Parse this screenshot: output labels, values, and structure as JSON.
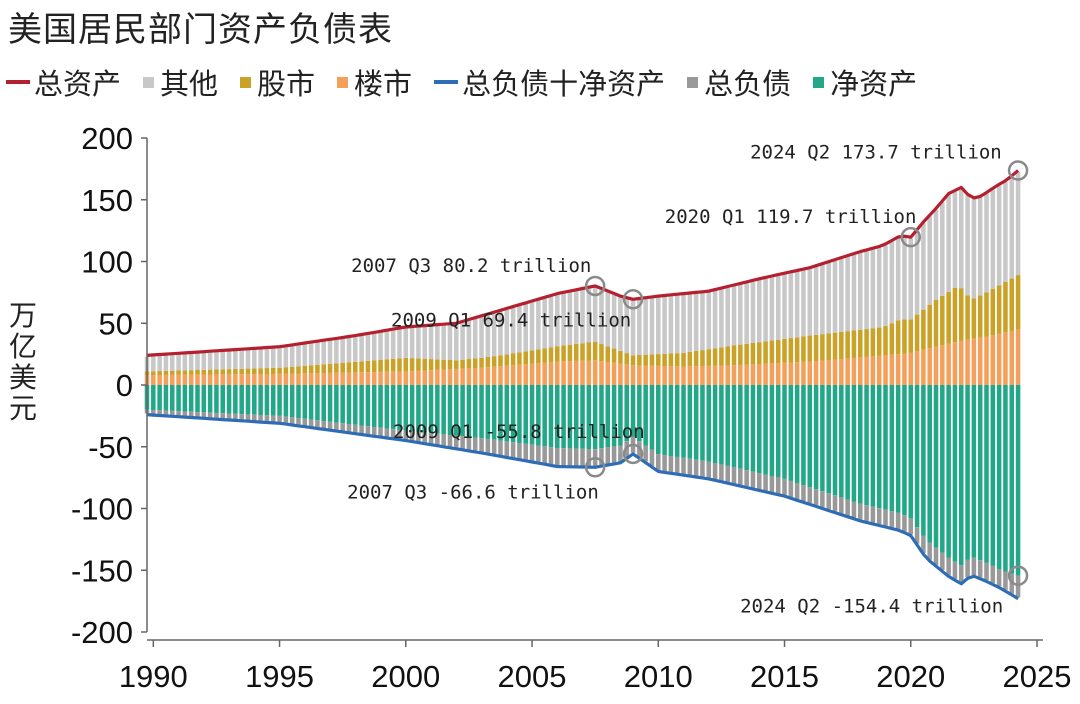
{
  "title": "美国居民部门资产负债表",
  "legend": [
    {
      "label": "总资产",
      "kind": "line",
      "color": "#b4202f"
    },
    {
      "label": "其他",
      "kind": "box",
      "color": "#c8c8c8"
    },
    {
      "label": "股市",
      "kind": "box",
      "color": "#c9a227"
    },
    {
      "label": "楼市",
      "kind": "box",
      "color": "#f5a05a"
    },
    {
      "label": "总负债十净资产",
      "kind": "line",
      "color": "#2e6db5"
    },
    {
      "label": "总负债",
      "kind": "box",
      "color": "#999999"
    },
    {
      "label": "净资产",
      "kind": "box",
      "color": "#22a889"
    }
  ],
  "chart_data": {
    "type": "bar",
    "ylabel": "万亿美元",
    "ylim": [
      -200,
      200
    ],
    "yticks": [
      200,
      150,
      100,
      50,
      0,
      -50,
      -100,
      -150,
      -200
    ],
    "xlim": [
      1989.75,
      2025
    ],
    "xticks": [
      1990,
      1995,
      2000,
      2005,
      2010,
      2015,
      2020,
      2025
    ],
    "grid": false,
    "legend_position": "top",
    "series": [
      {
        "name": "总资产",
        "kind": "line",
        "x": [
          1989.75,
          1992,
          1995,
          1998,
          2000,
          2002,
          2004,
          2006,
          2007.5,
          2008.5,
          2009,
          2010,
          2012,
          2014,
          2016,
          2018,
          2018.9,
          2019.6,
          2020,
          2020.5,
          2021,
          2021.5,
          2022,
          2022.4,
          2022.8,
          2023.3,
          2023.8,
          2024.25
        ],
        "values": [
          24,
          27,
          31,
          40,
          47,
          50,
          62,
          74,
          80.2,
          72,
          69.4,
          72,
          76,
          86,
          95,
          108,
          113,
          121,
          119.7,
          132,
          143,
          155,
          160,
          151,
          153,
          160,
          166,
          173.7
        ]
      },
      {
        "name": "楼市",
        "kind": "stack",
        "x": [
          1989.75,
          1995,
          2000,
          2003,
          2006,
          2007.5,
          2009,
          2011,
          2013,
          2016,
          2019,
          2020,
          2021,
          2022,
          2023,
          2024.25
        ],
        "values": [
          8,
          9,
          11,
          14,
          19,
          20,
          16,
          15,
          16,
          19,
          24,
          26,
          31,
          36,
          39,
          45
        ]
      },
      {
        "name": "股市",
        "kind": "stack",
        "x": [
          1989.75,
          1995,
          2000,
          2002,
          2004,
          2007.5,
          2009,
          2011,
          2013,
          2016,
          2018.9,
          2019.6,
          2020,
          2021,
          2021.9,
          2022.4,
          2023,
          2024.25
        ],
        "values": [
          3,
          5,
          11,
          7,
          9,
          15,
          8,
          11,
          16,
          21,
          23,
          28,
          27,
          38,
          45,
          32,
          36,
          44
        ]
      },
      {
        "name": "总负债十净资产",
        "kind": "line",
        "x": [
          1989.75,
          1995,
          2000,
          2003,
          2006,
          2007.5,
          2008.5,
          2009,
          2010,
          2012,
          2015,
          2018,
          2019.6,
          2020,
          2020.6,
          2021.5,
          2022,
          2022.4,
          2023,
          2023.6,
          2024.25
        ],
        "values": [
          -24,
          -31,
          -45,
          -55,
          -66,
          -66.6,
          -63,
          -55.8,
          -70,
          -76,
          -90,
          -110,
          -118,
          -122,
          -140,
          -155,
          -161,
          -154,
          -159,
          -165,
          -173
        ]
      },
      {
        "name": "净资产",
        "kind": "stack",
        "x": [
          1989.75,
          1995,
          2000,
          2003,
          2006,
          2007.5,
          2008.5,
          2009,
          2010,
          2012,
          2015,
          2018,
          2019.6,
          2020,
          2020.6,
          2021.5,
          2022,
          2022.4,
          2023,
          2023.6,
          2024.25
        ],
        "values": [
          -20,
          -25,
          -37,
          -43,
          -51,
          -52,
          -49,
          -42,
          -56,
          -62,
          -76,
          -96,
          -104,
          -108,
          -125,
          -140,
          -146,
          -139,
          -144,
          -150,
          -154.4
        ]
      }
    ],
    "annotations": [
      {
        "text": "2024 Q2 173.7 trillion",
        "x": 2024.25,
        "y": 173.7
      },
      {
        "text": "2020 Q1 119.7 trillion",
        "x": 2020.0,
        "y": 119.7
      },
      {
        "text": "2007 Q3 80.2 trillion",
        "x": 2007.5,
        "y": 80.2
      },
      {
        "text": "2009 Q1 69.4 trillion",
        "x": 2009.0,
        "y": 69.4
      },
      {
        "text": "2009 Q1 -55.8 trillion",
        "x": 2009.0,
        "y": -55.8
      },
      {
        "text": "2007 Q3 -66.6 trillion",
        "x": 2007.5,
        "y": -66.6
      },
      {
        "text": "2024 Q2 -154.4 trillion",
        "x": 2024.25,
        "y": -154.4
      }
    ]
  }
}
